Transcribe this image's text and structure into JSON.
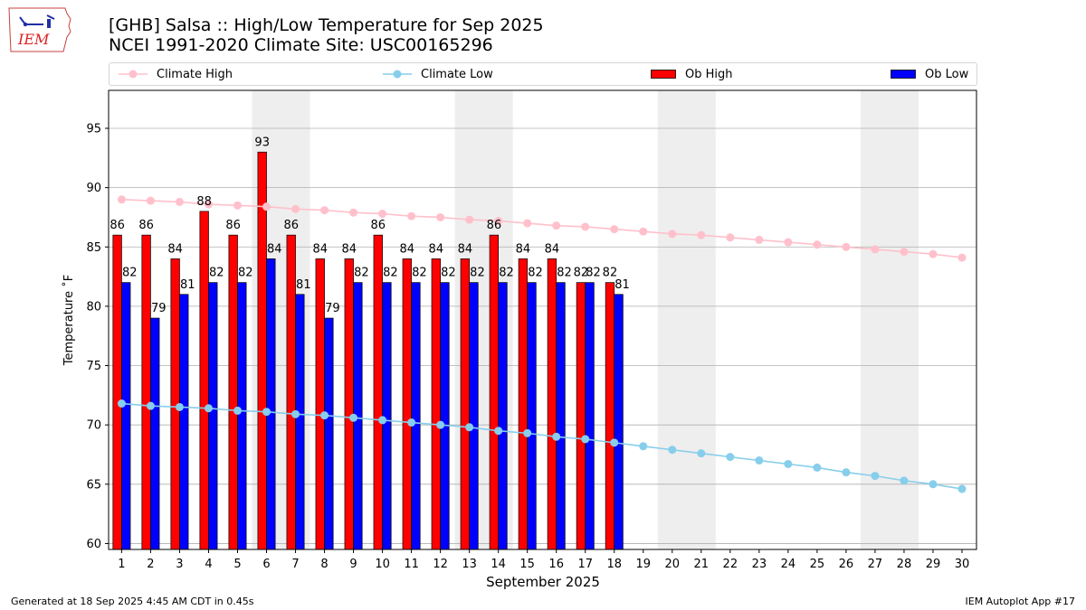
{
  "header": {
    "title_line1": "[GHB] Salsa :: High/Low Temperature for Sep 2025",
    "title_line2": "NCEI 1991-2020 Climate Site: USC00165296"
  },
  "logo": {
    "text": "IEM"
  },
  "footer": {
    "generated": "Generated at 18 Sep 2025 4:45 AM CDT in 0.45s",
    "app": "IEM Autoplot App #17"
  },
  "colors": {
    "climate_high": "#ffc0cb",
    "climate_low": "#87ceeb",
    "ob_high": "#ff0000",
    "ob_low": "#0000ff",
    "weekend_shade": "#eeeeee",
    "grid": "#b0b0b0"
  },
  "chart_data": {
    "type": "bar",
    "xlabel": "September 2025",
    "ylabel": "Temperature ˚F",
    "ylim": [
      59.5,
      98.2
    ],
    "yticks": [
      60,
      65,
      70,
      75,
      80,
      85,
      90,
      95
    ],
    "xlim": [
      0.55,
      30.5
    ],
    "days": [
      1,
      2,
      3,
      4,
      5,
      6,
      7,
      8,
      9,
      10,
      11,
      12,
      13,
      14,
      15,
      16,
      17,
      18,
      19,
      20,
      21,
      22,
      23,
      24,
      25,
      26,
      27,
      28,
      29,
      30
    ],
    "weekend_shaded_days": [
      [
        6,
        7
      ],
      [
        13,
        14
      ],
      [
        20,
        21
      ],
      [
        27,
        28
      ]
    ],
    "grid": "horizontal",
    "legend_placement": "top",
    "series": [
      {
        "name": "Climate High",
        "type": "line",
        "values": [
          89.0,
          88.9,
          88.8,
          88.6,
          88.5,
          88.4,
          88.2,
          88.1,
          87.9,
          87.8,
          87.6,
          87.5,
          87.3,
          87.2,
          87.0,
          86.8,
          86.7,
          86.5,
          86.3,
          86.1,
          86.0,
          85.8,
          85.6,
          85.4,
          85.2,
          85.0,
          84.8,
          84.6,
          84.4,
          84.1
        ]
      },
      {
        "name": "Climate Low",
        "type": "line",
        "values": [
          71.8,
          71.6,
          71.5,
          71.4,
          71.2,
          71.1,
          70.9,
          70.8,
          70.6,
          70.4,
          70.2,
          70.0,
          69.8,
          69.5,
          69.3,
          69.0,
          68.8,
          68.5,
          68.2,
          67.9,
          67.6,
          67.3,
          67.0,
          66.7,
          66.4,
          66.0,
          65.7,
          65.3,
          65.0,
          64.6
        ]
      },
      {
        "name": "Ob High",
        "type": "bar",
        "values": [
          86,
          86,
          84,
          88,
          86,
          93,
          86,
          84,
          84,
          86,
          84,
          84,
          84,
          86,
          84,
          84,
          82,
          82
        ]
      },
      {
        "name": "Ob Low",
        "type": "bar",
        "values": [
          82,
          79,
          81,
          82,
          82,
          84,
          81,
          79,
          82,
          82,
          82,
          82,
          82,
          82,
          82,
          82,
          82,
          81
        ]
      }
    ]
  }
}
